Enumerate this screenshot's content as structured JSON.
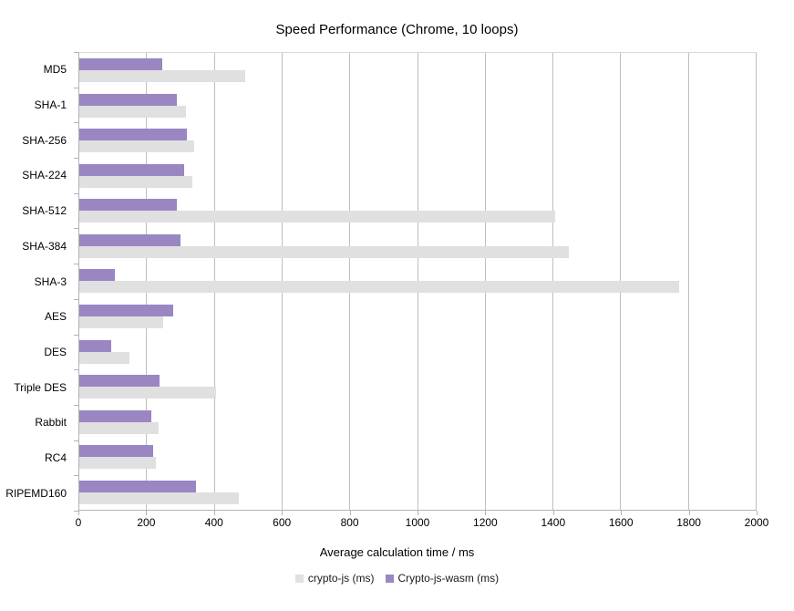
{
  "chart_data": {
    "type": "bar",
    "orientation": "horizontal",
    "title": "Speed Performance (Chrome, 10 loops)",
    "xlabel": "Average calculation time / ms",
    "xlim": [
      0,
      2000
    ],
    "x_ticks": [
      0,
      200,
      400,
      600,
      800,
      1000,
      1200,
      1400,
      1600,
      1800,
      2000
    ],
    "grid": "vertical",
    "legend_position": "bottom",
    "categories": [
      "MD5",
      "SHA-1",
      "SHA-256",
      "SHA-224",
      "SHA-512",
      "SHA-384",
      "SHA-3",
      "AES",
      "DES",
      "Triple DES",
      "Rabbit",
      "RC4",
      "RIPEMD160"
    ],
    "series": [
      {
        "name": "crypto-js (ms)",
        "color": "#e0e0e0",
        "values": [
          490,
          315,
          340,
          333,
          1405,
          1445,
          1770,
          248,
          148,
          405,
          234,
          227,
          470
        ]
      },
      {
        "name": "Crypto-js-wasm (ms)",
        "color": "#9a87c2",
        "values": [
          245,
          287,
          317,
          309,
          287,
          298,
          106,
          276,
          95,
          238,
          212,
          219,
          344
        ]
      }
    ],
    "bar_display_order": [
      1,
      0
    ]
  }
}
